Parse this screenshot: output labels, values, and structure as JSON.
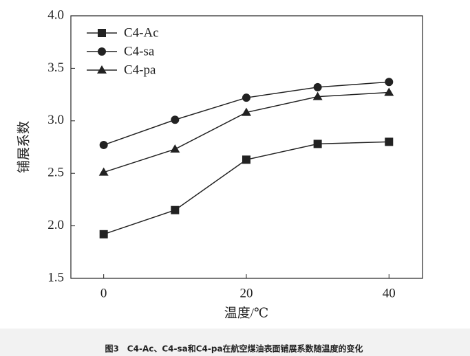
{
  "chart_data": {
    "type": "line",
    "caption": "图3　C4-Ac、C4-sa和C4-pa在航空煤油表面铺展系数随温度的变化",
    "x_label": "温度/℃",
    "y_label": "铺展系数",
    "x": [
      0,
      10,
      20,
      30,
      40
    ],
    "series": [
      {
        "name": "C4-Ac",
        "color": "#222222",
        "marker": "square",
        "values": [
          1.92,
          2.15,
          2.63,
          2.78,
          2.8
        ]
      },
      {
        "name": "C4-sa",
        "color": "#222222",
        "marker": "circle",
        "values": [
          2.77,
          3.01,
          3.22,
          3.32,
          3.37
        ]
      },
      {
        "name": "C4-pa",
        "color": "#222222",
        "marker": "triangle",
        "values": [
          2.51,
          2.73,
          3.08,
          3.23,
          3.27
        ]
      }
    ],
    "xlim": [
      -4.6,
      44.7
    ],
    "xticks": [
      0,
      20,
      40
    ],
    "ylim": [
      1.5,
      4.0
    ],
    "yticks": [
      {
        "value": 1.5,
        "label": "1.5"
      },
      {
        "value": 2.0,
        "label": "2.0"
      },
      {
        "value": 2.5,
        "label": "2.5"
      },
      {
        "value": 3.0,
        "label": "3.0"
      },
      {
        "value": 3.5,
        "label": "3.5"
      },
      {
        "value": 4.0,
        "label": "4.0"
      }
    ],
    "legend": "upper-left",
    "grid": false
  }
}
